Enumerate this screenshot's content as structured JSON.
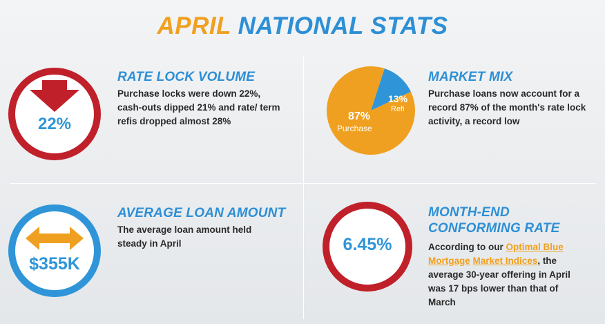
{
  "title": {
    "accent": "APRIL",
    "rest": " NATIONAL STATS"
  },
  "rate_lock": {
    "heading": "RATE LOCK VOLUME",
    "value": "22%",
    "body": "Purchase locks were down 22%, cash-outs dipped 21% and rate/ term refis dropped almost 28%",
    "icon": "down-arrow-icon",
    "ring_color": "#c0202a",
    "arrow_color": "#c0202a"
  },
  "market_mix": {
    "heading": "MARKET MIX",
    "body": "Purchase loans now account for a record 87% of the month's rate lock activity, a record low",
    "chart_data": {
      "type": "pie",
      "categories": [
        "Purchase",
        "Refi"
      ],
      "values": [
        87,
        13
      ],
      "value_labels": [
        "87%",
        "13%"
      ],
      "colors": [
        "#f0a020",
        "#2f95d8"
      ]
    }
  },
  "avg_loan": {
    "heading": "AVERAGE LOAN AMOUNT",
    "value": "$355K",
    "body": "The average loan amount held steady in April",
    "icon": "double-arrow-icon",
    "ring_color": "#2f95d8",
    "arrow_color": "#f0a020"
  },
  "conforming": {
    "heading_line1": "MONTH-END",
    "heading_line2": "CONFORMING RATE",
    "value": "6.45%",
    "ring_color": "#c0202a",
    "body_before": "According to our ",
    "link_1": "Optimal Blue",
    "link_2": "Mortgage",
    "link_3": "Market Indices",
    "body_after": ", the average 30-year offering in April was 17 bps lower than that of March"
  }
}
